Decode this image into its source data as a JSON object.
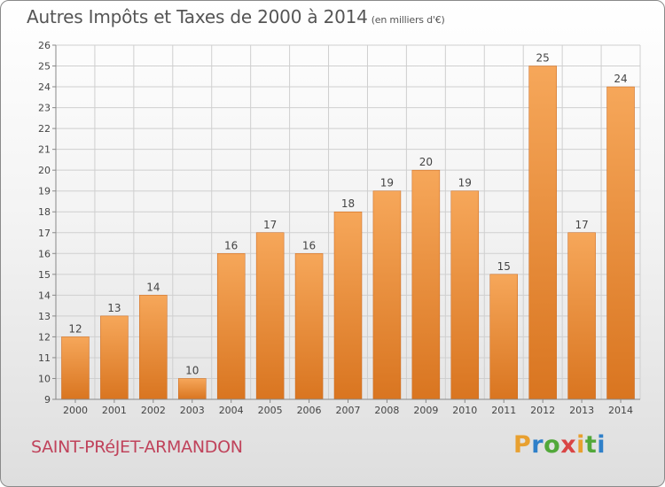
{
  "header": {
    "title": "Autres Impôts et Taxes de 2000 à 2014",
    "unit": "(en milliers d'€)"
  },
  "footer": {
    "commune": "SAINT-PRéJET-ARMANDON",
    "logo_letters": [
      "P",
      "r",
      "o",
      "x",
      "i",
      "t",
      "i"
    ],
    "logo_colors": [
      "#e8a030",
      "#2f80c9",
      "#52a83a",
      "#d94545",
      "#e8a030",
      "#52a83a",
      "#2f80c9"
    ]
  },
  "colors": {
    "bar_light": "#f6a75a",
    "bar_dark": "#d97520",
    "grid": "#cfcfcf",
    "axis": "#888888",
    "text": "#444444"
  },
  "chart_data": {
    "type": "bar",
    "title": "Autres Impôts et Taxes de 2000 à 2014",
    "subtitle": "(en milliers d'€)",
    "categories": [
      "2000",
      "2001",
      "2002",
      "2003",
      "2004",
      "2005",
      "2006",
      "2007",
      "2008",
      "2009",
      "2010",
      "2011",
      "2012",
      "2013",
      "2014"
    ],
    "values": [
      12,
      13,
      14,
      10,
      16,
      17,
      16,
      18,
      19,
      20,
      19,
      15,
      25,
      17,
      24
    ],
    "ylim": [
      9,
      26
    ],
    "yticks": [
      "9",
      "10",
      "11",
      "12",
      "13",
      "14",
      "15",
      "16",
      "17",
      "18",
      "19",
      "20",
      "21",
      "22",
      "23",
      "24",
      "25",
      "26"
    ],
    "grid": true,
    "xlabel": "",
    "ylabel": ""
  }
}
